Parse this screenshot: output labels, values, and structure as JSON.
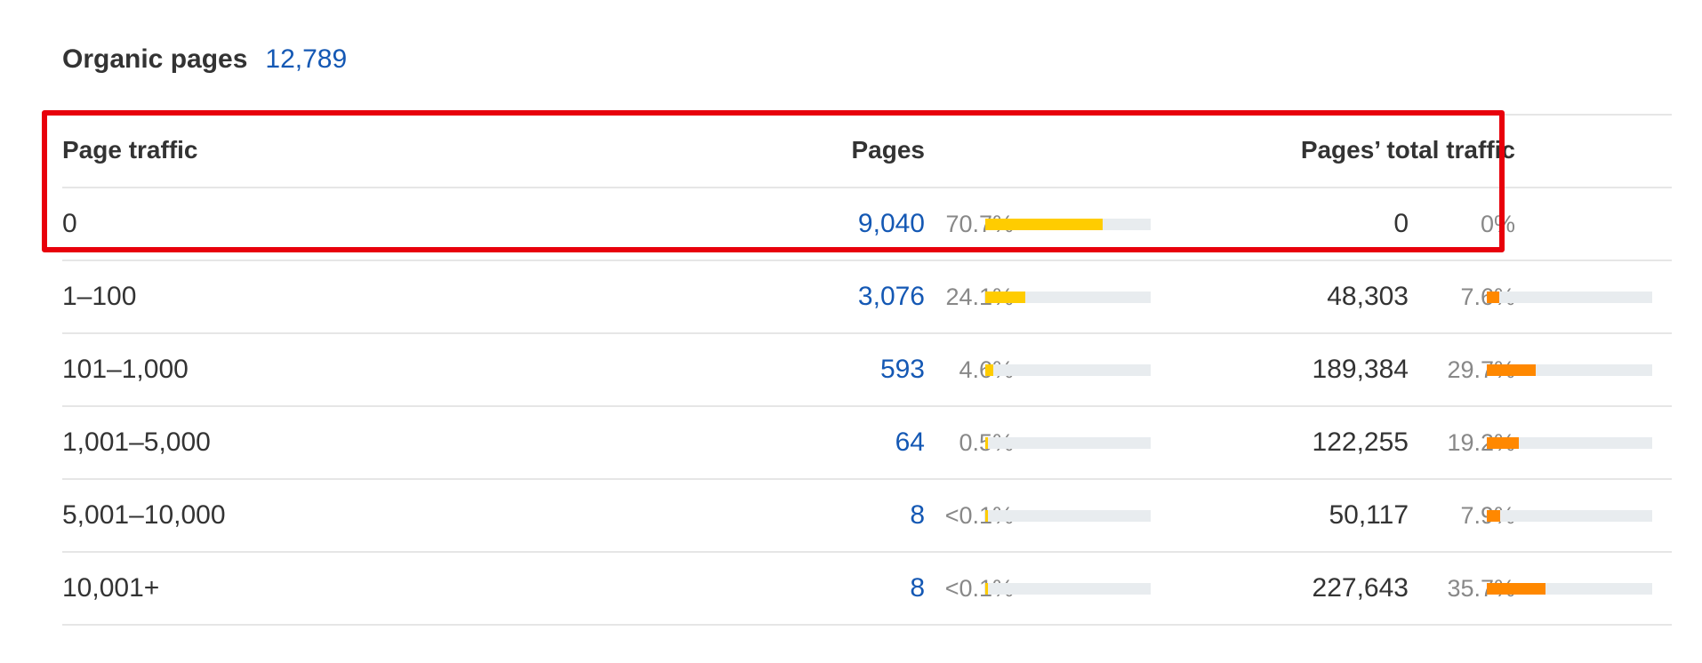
{
  "title": {
    "label": "Organic pages",
    "count": "12,789"
  },
  "headers": {
    "range": "Page traffic",
    "pages": "Pages",
    "traffic": "Pages’ total traffic"
  },
  "colors": {
    "pages_bar": "#ffcc00",
    "traffic_bar": "#ff8800",
    "link": "#1458b4",
    "highlight": "#e8000b"
  },
  "rows": [
    {
      "range": "0",
      "pages": "9,040",
      "pages_pct": "70.7%",
      "pages_fill": 70.7,
      "traffic": "0",
      "traffic_pct": "0%",
      "traffic_fill": 0
    },
    {
      "range": "1–100",
      "pages": "3,076",
      "pages_pct": "24.1%",
      "pages_fill": 24.1,
      "traffic": "48,303",
      "traffic_pct": "7.6%",
      "traffic_fill": 7.6
    },
    {
      "range": "101–1,000",
      "pages": "593",
      "pages_pct": "4.6%",
      "pages_fill": 4.6,
      "traffic": "189,384",
      "traffic_pct": "29.7%",
      "traffic_fill": 29.7
    },
    {
      "range": "1,001–5,000",
      "pages": "64",
      "pages_pct": "0.5%",
      "pages_fill": 0.5,
      "traffic": "122,255",
      "traffic_pct": "19.2%",
      "traffic_fill": 19.2
    },
    {
      "range": "5,001–10,000",
      "pages": "8",
      "pages_pct": "<0.1%",
      "pages_fill": 0.1,
      "traffic": "50,117",
      "traffic_pct": "7.9%",
      "traffic_fill": 7.9
    },
    {
      "range": "10,001+",
      "pages": "8",
      "pages_pct": "<0.1%",
      "pages_fill": 0.1,
      "traffic": "227,643",
      "traffic_pct": "35.7%",
      "traffic_fill": 35.7
    }
  ]
}
